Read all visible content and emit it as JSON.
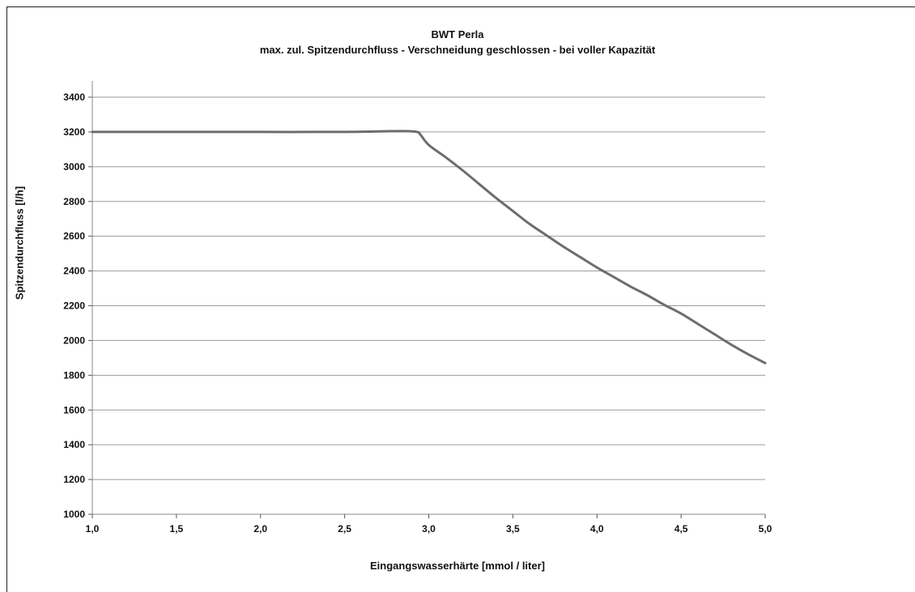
{
  "chart_data": {
    "type": "line",
    "title": "BWT Perla",
    "subtitle": "max. zul. Spitzendurchfluss - Verschneidung geschlossen - bei voller Kapazität",
    "xlabel": "Eingangswasserhärte [mmol / liter]",
    "ylabel": "Spitzendurchfluss [l/h]",
    "xlim": [
      1.0,
      5.0
    ],
    "ylim": [
      1000,
      3400
    ],
    "x_ticks": [
      "1,0",
      "1,5",
      "2,0",
      "2,5",
      "3,0",
      "3,5",
      "4,0",
      "4,5",
      "5,0"
    ],
    "y_ticks": [
      "1000",
      "1200",
      "1400",
      "1600",
      "1800",
      "2000",
      "2200",
      "2400",
      "2600",
      "2800",
      "3000",
      "3200",
      "3400"
    ],
    "grid": "horizontal",
    "series": [
      {
        "color": "#6d6d6d",
        "x": [
          1.0,
          1.5,
          2.0,
          2.5,
          2.7,
          2.85,
          2.93,
          2.95,
          3.0,
          3.1,
          3.2,
          3.3,
          3.4,
          3.5,
          3.6,
          3.7,
          3.8,
          3.9,
          4.0,
          4.1,
          4.2,
          4.3,
          4.4,
          4.5,
          4.6,
          4.7,
          4.8,
          4.9,
          5.0
        ],
        "y": [
          3200,
          3200,
          3200,
          3200,
          3203,
          3205,
          3200,
          3185,
          3125,
          3055,
          2980,
          2900,
          2820,
          2745,
          2670,
          2605,
          2540,
          2480,
          2420,
          2365,
          2310,
          2260,
          2205,
          2155,
          2095,
          2035,
          1975,
          1920,
          1870
        ]
      }
    ]
  }
}
